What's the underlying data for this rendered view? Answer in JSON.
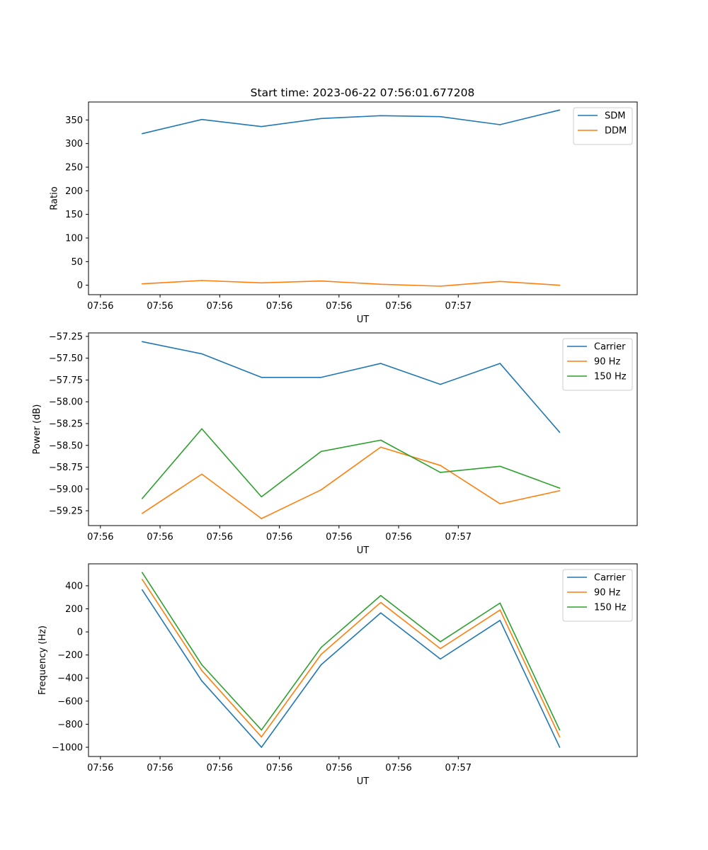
{
  "chart_data": [
    {
      "type": "line",
      "title": "Start time: 2023-06-22 07:56:01.677208",
      "xlabel": "UT",
      "ylabel": "Ratio",
      "x_tick_labels": [
        "07:56",
        "07:56",
        "07:56",
        "07:56",
        "07:56",
        "07:56",
        "07:57"
      ],
      "xlim": [
        -0.2,
        9.0
      ],
      "x": [
        0.7,
        1.7,
        2.7,
        3.7,
        4.7,
        5.7,
        6.7,
        7.7
      ],
      "ylim": [
        -20,
        388
      ],
      "yticks": [
        0,
        50,
        100,
        150,
        200,
        250,
        300,
        350
      ],
      "legend_position": "top-right",
      "grid": false,
      "series": [
        {
          "name": "SDM",
          "color": "#1f77b4",
          "values": [
            321,
            351,
            336,
            353,
            359,
            357,
            340,
            371
          ]
        },
        {
          "name": "DDM",
          "color": "#ff7f0e",
          "values": [
            3,
            10,
            5,
            9,
            2,
            -2,
            8,
            0
          ]
        }
      ]
    },
    {
      "type": "line",
      "title": "",
      "xlabel": "UT",
      "ylabel": "Power (dB)",
      "x_tick_labels": [
        "07:56",
        "07:56",
        "07:56",
        "07:56",
        "07:56",
        "07:56",
        "07:57"
      ],
      "xlim": [
        -0.2,
        9.0
      ],
      "x": [
        0.7,
        1.7,
        2.7,
        3.7,
        4.7,
        5.7,
        6.7,
        7.7
      ],
      "ylim": [
        -59.42,
        -57.21
      ],
      "yticks": [
        -57.25,
        -57.5,
        -57.75,
        -58.0,
        -58.25,
        -58.5,
        -58.75,
        -59.0,
        -59.25
      ],
      "y_tick_labels": [
        "−57.25",
        "−57.50",
        "−57.75",
        "−58.00",
        "−58.25",
        "−58.50",
        "−58.75",
        "−59.00",
        "−59.25"
      ],
      "legend_position": "top-right",
      "grid": false,
      "series": [
        {
          "name": "Carrier",
          "color": "#1f77b4",
          "values": [
            -57.31,
            -57.45,
            -57.72,
            -57.72,
            -57.56,
            -57.8,
            -57.56,
            -58.35
          ]
        },
        {
          "name": "90 Hz",
          "color": "#ff7f0e",
          "values": [
            -59.28,
            -58.83,
            -59.34,
            -59.01,
            -58.52,
            -58.73,
            -59.17,
            -59.02
          ]
        },
        {
          "name": "150 Hz",
          "color": "#2ca02c",
          "values": [
            -59.11,
            -58.31,
            -59.09,
            -58.57,
            -58.44,
            -58.81,
            -58.74,
            -58.99
          ]
        }
      ]
    },
    {
      "type": "line",
      "title": "",
      "xlabel": "UT",
      "ylabel": "Frequency (Hz)",
      "x_tick_labels": [
        "07:56",
        "07:56",
        "07:56",
        "07:56",
        "07:56",
        "07:56",
        "07:57"
      ],
      "xlim": [
        -0.2,
        9.0
      ],
      "x": [
        0.7,
        1.7,
        2.7,
        3.7,
        4.7,
        5.7,
        6.7,
        7.7
      ],
      "ylim": [
        -1080,
        590
      ],
      "yticks": [
        400,
        200,
        0,
        -200,
        -400,
        -600,
        -800,
        -1000
      ],
      "y_tick_labels": [
        "400",
        "200",
        "0",
        "−200",
        "−400",
        "−600",
        "−800",
        "−1000"
      ],
      "legend_position": "top-right",
      "grid": false,
      "series": [
        {
          "name": "Carrier",
          "color": "#1f77b4",
          "values": [
            365,
            -425,
            -1000,
            -285,
            165,
            -235,
            100,
            -1000
          ]
        },
        {
          "name": "90 Hz",
          "color": "#ff7f0e",
          "values": [
            455,
            -335,
            -910,
            -195,
            255,
            -145,
            190,
            -910
          ]
        },
        {
          "name": "150 Hz",
          "color": "#2ca02c",
          "values": [
            515,
            -285,
            -850,
            -135,
            315,
            -85,
            250,
            -850
          ]
        }
      ]
    }
  ]
}
